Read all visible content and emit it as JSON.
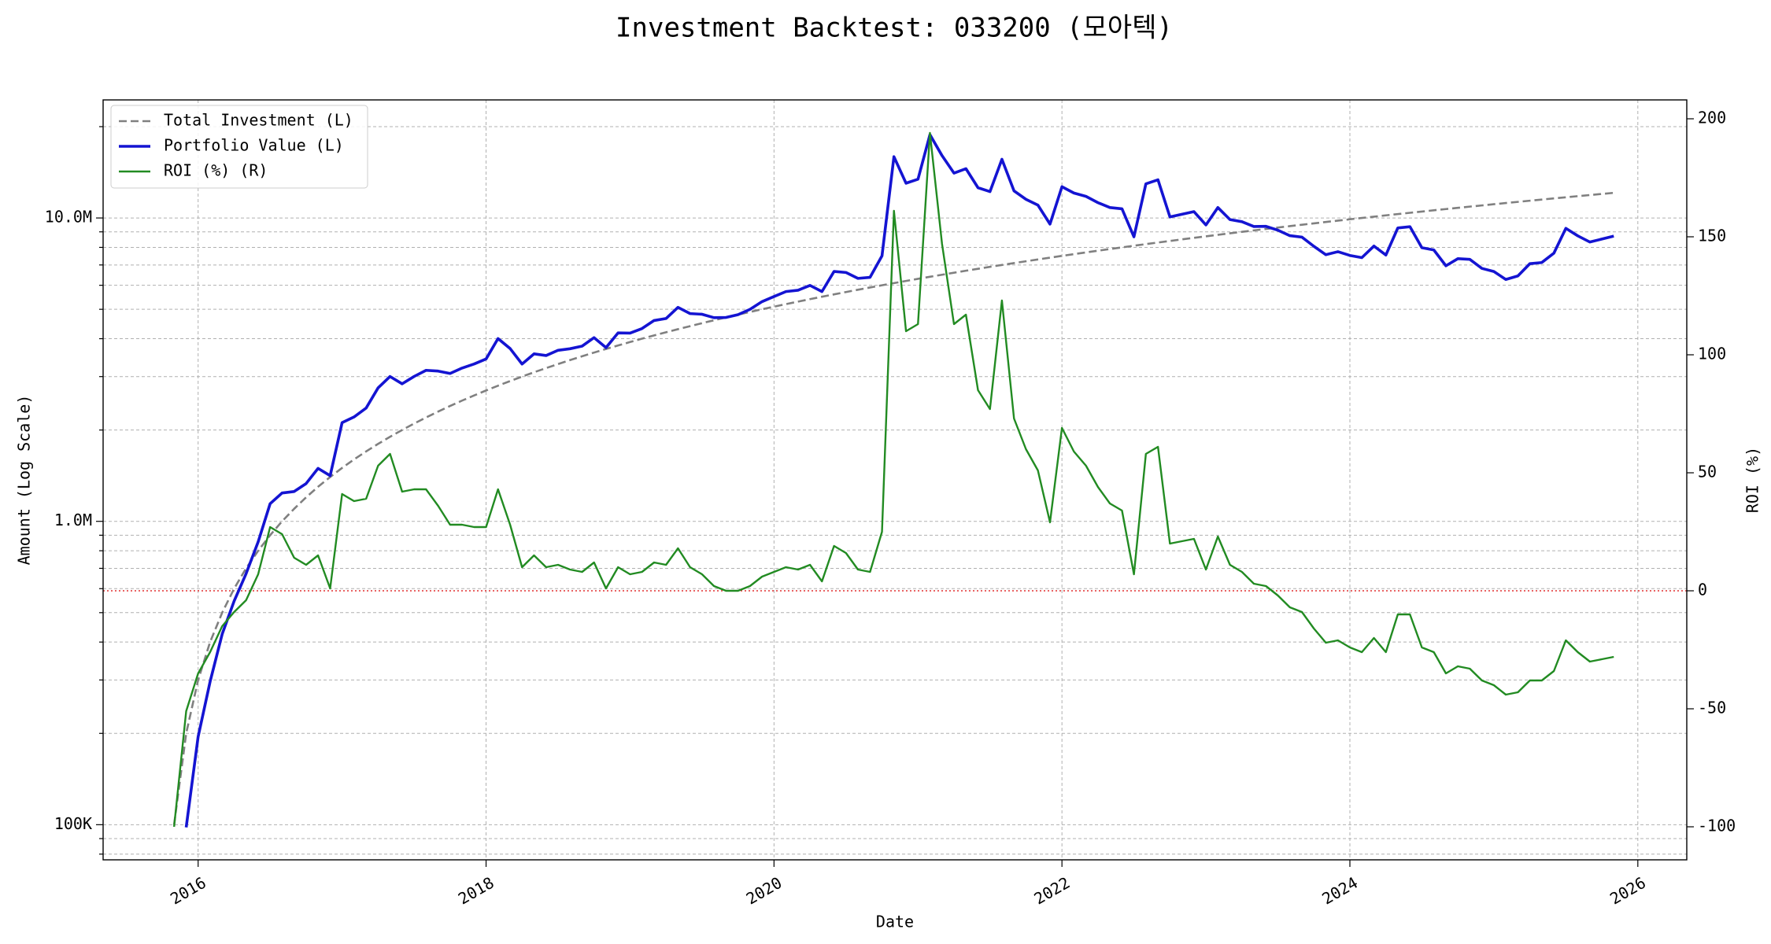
{
  "chart_data": {
    "type": "line",
    "title": "Investment Backtest: 033200 (모아텍)",
    "xlabel": "Date",
    "ylabel": "Amount (Log Scale)",
    "y2label": "ROI (%)",
    "y_color": "#1414d2",
    "y2_color": "#228b22",
    "yscale": "log",
    "grid": true,
    "legend": "upper left",
    "xlim": [
      2015.34,
      2026.34
    ],
    "xticks": [
      2016,
      2018,
      2020,
      2022,
      2024,
      2026
    ],
    "ylim": [
      76600,
      24500000
    ],
    "yticks": [
      {
        "value": 100000,
        "label": "100K"
      },
      {
        "value": 1000000,
        "label": "1.0M"
      },
      {
        "value": 10000000,
        "label": "10.0M"
      }
    ],
    "minor_yticks": [
      80000,
      90000,
      200000,
      300000,
      400000,
      500000,
      600000,
      700000,
      800000,
      900000,
      2000000,
      3000000,
      4000000,
      5000000,
      6000000,
      7000000,
      8000000,
      9000000,
      20000000
    ],
    "y2lim": [
      -114,
      208
    ],
    "y2ticks": [
      -100,
      -50,
      0,
      50,
      100,
      150,
      200
    ],
    "hline": {
      "axis": "y2",
      "value": 0,
      "color": "#e03030"
    },
    "x": [
      2015.833,
      2015.917,
      2016.0,
      2016.083,
      2016.167,
      2016.25,
      2016.333,
      2016.417,
      2016.5,
      2016.583,
      2016.667,
      2016.75,
      2016.833,
      2016.917,
      2017.0,
      2017.083,
      2017.167,
      2017.25,
      2017.333,
      2017.417,
      2017.5,
      2017.583,
      2017.667,
      2017.75,
      2017.833,
      2017.917,
      2018.0,
      2018.083,
      2018.167,
      2018.25,
      2018.333,
      2018.417,
      2018.5,
      2018.583,
      2018.667,
      2018.75,
      2018.833,
      2018.917,
      2019.0,
      2019.083,
      2019.167,
      2019.25,
      2019.333,
      2019.417,
      2019.5,
      2019.583,
      2019.667,
      2019.75,
      2019.833,
      2019.917,
      2020.0,
      2020.083,
      2020.167,
      2020.25,
      2020.333,
      2020.417,
      2020.5,
      2020.583,
      2020.667,
      2020.75,
      2020.833,
      2020.917,
      2021.0,
      2021.083,
      2021.167,
      2021.25,
      2021.333,
      2021.417,
      2021.5,
      2021.583,
      2021.667,
      2021.75,
      2021.833,
      2021.917,
      2022.0,
      2022.083,
      2022.167,
      2022.25,
      2022.333,
      2022.417,
      2022.5,
      2022.583,
      2022.667,
      2022.75,
      2022.833,
      2022.917,
      2023.0,
      2023.083,
      2023.167,
      2023.25,
      2023.333,
      2023.417,
      2023.5,
      2023.583,
      2023.667,
      2023.75,
      2023.833,
      2023.917,
      2024.0,
      2024.083,
      2024.167,
      2024.25,
      2024.333,
      2024.417,
      2024.5,
      2024.583,
      2024.667,
      2024.75,
      2024.833,
      2024.917,
      2025.0,
      2025.083,
      2025.167,
      2025.25,
      2025.333,
      2025.417,
      2025.5,
      2025.583,
      2025.667,
      2025.75,
      2025.833
    ],
    "series": [
      {
        "name": "Total Investment (L)",
        "color": "#808080",
        "linestyle": "dashed",
        "linewidth": 2.6,
        "axis": "y",
        "values": [
          100000,
          200000,
          300000,
          400000,
          500000,
          600000,
          700000,
          800000,
          900000,
          1000000,
          1100000,
          1200000,
          1300000,
          1400000,
          1500000,
          1600000,
          1700000,
          1800000,
          1900000,
          2000000,
          2100000,
          2200000,
          2300000,
          2400000,
          2500000,
          2600000,
          2700000,
          2800000,
          2900000,
          3000000,
          3100000,
          3200000,
          3300000,
          3400000,
          3500000,
          3600000,
          3700000,
          3800000,
          3900000,
          4000000,
          4100000,
          4200000,
          4300000,
          4400000,
          4500000,
          4600000,
          4700000,
          4800000,
          4900000,
          5000000,
          5100000,
          5200000,
          5300000,
          5400000,
          5500000,
          5600000,
          5700000,
          5800000,
          5900000,
          6000000,
          6100000,
          6200000,
          6300000,
          6400000,
          6500000,
          6600000,
          6700000,
          6800000,
          6900000,
          7000000,
          7100000,
          7200000,
          7300000,
          7400000,
          7500000,
          7600000,
          7700000,
          7800000,
          7900000,
          8000000,
          8100000,
          8200000,
          8300000,
          8400000,
          8500000,
          8600000,
          8700000,
          8800000,
          8900000,
          9000000,
          9100000,
          9200000,
          9300000,
          9400000,
          9500000,
          9600000,
          9700000,
          9800000,
          9900000,
          10000000,
          10100000,
          10200000,
          10300000,
          10400000,
          10500000,
          10600000,
          10700000,
          10800000,
          10900000,
          11000000,
          11100000,
          11200000,
          11300000,
          11400000,
          11500000,
          11600000,
          11700000,
          11800000,
          11900000,
          12000000,
          12100000
        ]
      },
      {
        "name": "Portfolio Value (L)",
        "color": "#1414d2",
        "linestyle": "solid",
        "linewidth": 3.6,
        "axis": "y",
        "values": [
          null,
          98000,
          195000,
          296000,
          425000,
          546000,
          672000,
          856000,
          1143000,
          1240000,
          1254000,
          1332000,
          1495000,
          1414000,
          2115000,
          2208000,
          2363000,
          2754000,
          3002000,
          2840000,
          3003000,
          3146000,
          3128000,
          3072000,
          3200000,
          3302000,
          3429000,
          4004000,
          3712000,
          3300000,
          3565000,
          3520000,
          3663000,
          3706000,
          3780000,
          4032000,
          3737000,
          4180000,
          4173000,
          4320000,
          4592000,
          4662000,
          5074000,
          4840000,
          4815000,
          4692000,
          4700000,
          4800000,
          4998000,
          5300000,
          5508000,
          5720000,
          5777000,
          5994000,
          5720000,
          6664000,
          6612000,
          6322000,
          6372000,
          7500000,
          15921000,
          13020000,
          13419000,
          18816000,
          16055000,
          14058000,
          14539000,
          12580000,
          12213000,
          15610000,
          12283000,
          11520000,
          11023000,
          9546000,
          12675000,
          12084000,
          11781000,
          11232000,
          10823000,
          10720000,
          8667000,
          12956000,
          13363000,
          10080000,
          10285000,
          10492000,
          9483000,
          10824000,
          9879000,
          9720000,
          9373000,
          9384000,
          9114000,
          8742000,
          8645000,
          8064000,
          7566000,
          7742000,
          7524000,
          7400000,
          8080000,
          7548000,
          9270000,
          9360000,
          7980000,
          7844000,
          6955000,
          7344000,
          7303000,
          6820000,
          6660000,
          6272000,
          6441000,
          7068000,
          7130000,
          7656000,
          9243000,
          8732000,
          8330000,
          8520000,
          8712000
        ]
      },
      {
        "name": "ROI (%) (R)",
        "color": "#228b22",
        "linestyle": "solid",
        "linewidth": 2.4,
        "axis": "y2",
        "values": [
          -100,
          -51,
          -35,
          -26,
          -15,
          -9,
          -4,
          7,
          27,
          24,
          14,
          11,
          15,
          1,
          41,
          38,
          39,
          53,
          58,
          42,
          43,
          43,
          36,
          28,
          28,
          27,
          27,
          43,
          28,
          10,
          15,
          10,
          11,
          9,
          8,
          12,
          1,
          10,
          7,
          8,
          12,
          11,
          18,
          10,
          7,
          2,
          0,
          0,
          2,
          6,
          8,
          10,
          9,
          11,
          4,
          19,
          16,
          9,
          8,
          25,
          161,
          110,
          113,
          194,
          147,
          113,
          117,
          85,
          77,
          123,
          73,
          60,
          51,
          29,
          69,
          59,
          53,
          44,
          37,
          34,
          7,
          58,
          61,
          20,
          21,
          22,
          9,
          23,
          11,
          8,
          3,
          2,
          -2,
          -7,
          -9,
          -16,
          -22,
          -21,
          -24,
          -26,
          -20,
          -26,
          -10,
          -10,
          -24,
          -26,
          -35,
          -32,
          -33,
          -38,
          -40,
          -44,
          -43,
          -38,
          -38,
          -34,
          -21,
          -26,
          -30,
          -29,
          -28
        ]
      }
    ]
  }
}
